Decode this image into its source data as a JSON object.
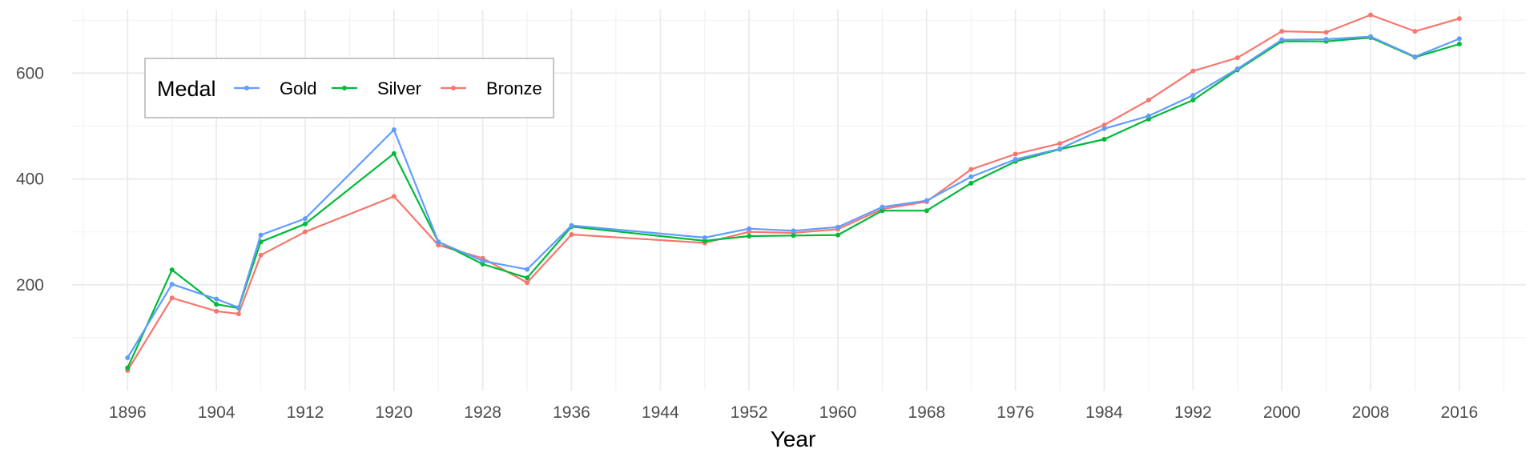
{
  "chart_data": {
    "type": "line",
    "title": "",
    "xlabel": "Year",
    "ylabel": "",
    "xlim": [
      1891,
      2022
    ],
    "ylim": [
      0,
      720
    ],
    "x_ticks": [
      1896,
      1904,
      1912,
      1920,
      1928,
      1936,
      1944,
      1952,
      1960,
      1968,
      1976,
      1984,
      1992,
      2000,
      2008,
      2016
    ],
    "y_ticks": [
      200,
      400,
      600
    ],
    "grid": true,
    "legend": {
      "title": "Medal",
      "placement": "top-left"
    },
    "x": [
      1896,
      1900,
      1904,
      1906,
      1908,
      1912,
      1920,
      1924,
      1928,
      1932,
      1936,
      1948,
      1952,
      1956,
      1960,
      1964,
      1968,
      1972,
      1976,
      1980,
      1984,
      1988,
      1992,
      1996,
      2000,
      2004,
      2008,
      2012,
      2016
    ],
    "series": [
      {
        "name": "Gold",
        "color": "#619CFF",
        "values": [
          62,
          201,
          173,
          157,
          294,
          325,
          493,
          281,
          245,
          229,
          312,
          289,
          306,
          302,
          309,
          347,
          359,
          404,
          437,
          457,
          495,
          519,
          558,
          608,
          663,
          664,
          669,
          631,
          665
        ]
      },
      {
        "name": "Silver",
        "color": "#00BA38",
        "values": [
          43,
          228,
          163,
          156,
          281,
          315,
          448,
          281,
          239,
          213,
          310,
          283,
          292,
          293,
          294,
          340,
          340,
          392,
          433,
          456,
          475,
          513,
          549,
          606,
          660,
          660,
          667,
          630,
          655
        ]
      },
      {
        "name": "Bronze",
        "color": "#F8766D",
        "values": [
          38,
          175,
          150,
          145,
          256,
          300,
          367,
          275,
          250,
          204,
          295,
          279,
          300,
          298,
          305,
          343,
          357,
          418,
          447,
          467,
          502,
          549,
          604,
          629,
          679,
          677,
          710,
          679,
          703
        ]
      }
    ]
  }
}
